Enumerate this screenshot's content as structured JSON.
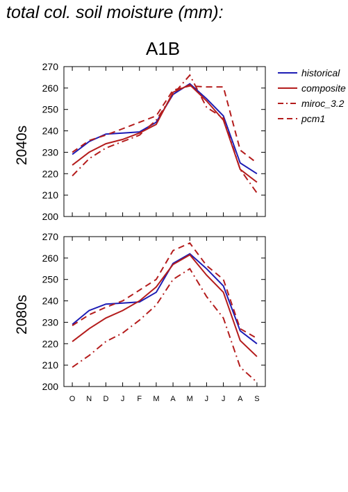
{
  "title": "total col. soil moisture (mm):",
  "chart_data": {
    "type": "line",
    "title": "A1B",
    "categories": [
      "O",
      "N",
      "D",
      "J",
      "F",
      "M",
      "A",
      "M",
      "J",
      "J",
      "A",
      "S"
    ],
    "ylim": [
      200,
      270
    ],
    "yticks": [
      200,
      210,
      220,
      230,
      240,
      250,
      260,
      270
    ],
    "legend": {
      "placement": "right",
      "entries": [
        {
          "name": "historical",
          "color": "#1c1cb4",
          "dash": "solid"
        },
        {
          "name": "composite",
          "color": "#b41c1c",
          "dash": "solid"
        },
        {
          "name": "miroc_3.2",
          "color": "#b41c1c",
          "dash": "dashdot"
        },
        {
          "name": "pcm1",
          "color": "#b41c1c",
          "dash": "dashed"
        }
      ]
    },
    "panels": [
      {
        "label": "2040s",
        "series": [
          {
            "name": "historical",
            "values": [
              229,
              235,
              238.5,
              239,
              239.5,
              244,
              257,
              262,
              255,
              247,
              225,
              220
            ]
          },
          {
            "name": "composite",
            "values": [
              224,
              230,
              234,
              236,
              239,
              243,
              258,
              261.5,
              254,
              245,
              222,
              216
            ]
          },
          {
            "name": "miroc_3.2",
            "values": [
              219,
              227,
              232,
              235,
              238,
              245,
              257,
              266,
              251,
              246,
              222,
              211
            ]
          },
          {
            "name": "pcm1",
            "values": [
              230,
              235.5,
              238,
              241,
              244,
              247,
              259,
              261,
              260.5,
              260.5,
              231,
              225
            ]
          }
        ]
      },
      {
        "label": "2080s",
        "series": [
          {
            "name": "historical",
            "values": [
              229,
              235.5,
              238.5,
              239,
              239.5,
              244,
              257.5,
              262,
              255,
              247,
              226,
              220
            ]
          },
          {
            "name": "composite",
            "values": [
              221,
              227,
              232,
              235.5,
              240,
              246.5,
              257,
              261.5,
              252,
              244,
              221.5,
              214
            ]
          },
          {
            "name": "miroc_3.2",
            "values": [
              209,
              214.5,
              221,
              225,
              231,
              238,
              250,
              255,
              242,
              232,
              209,
              202
            ]
          },
          {
            "name": "pcm1",
            "values": [
              228.5,
              233.5,
              237,
              240,
              245,
              250,
              263.5,
              267,
              256.5,
              250,
              227,
              222.5
            ]
          }
        ]
      }
    ]
  }
}
